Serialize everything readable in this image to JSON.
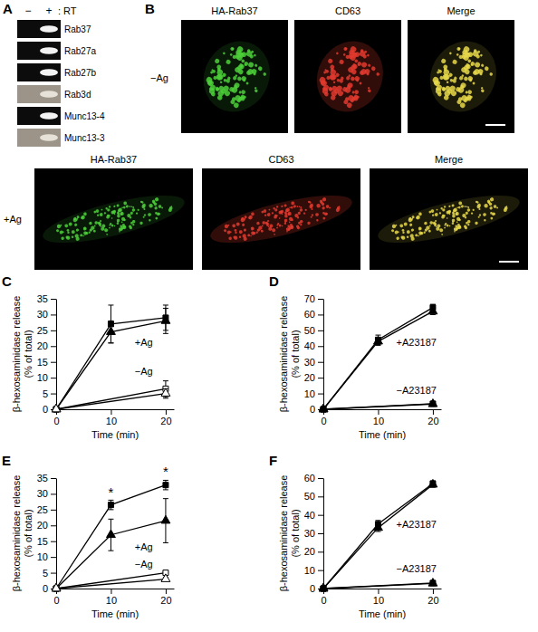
{
  "panel_a": {
    "label": "A",
    "lane_labels": [
      "−",
      "+"
    ],
    "lane_title": ": RT",
    "genes": [
      "Rab37",
      "Rab27a",
      "Rab27b",
      "Rab3d",
      "Munc13-4",
      "Munc13-3"
    ]
  },
  "panel_b": {
    "label": "B",
    "columns": [
      "HA-Rab37",
      "CD63",
      "Merge"
    ],
    "rows": [
      "−Ag",
      "+Ag"
    ]
  },
  "chart_data": [
    {
      "type": "line",
      "panel": "C",
      "x_label": "Time (min)",
      "y_label": [
        "β-hexosaminidase release",
        "(% of total)"
      ],
      "xlim": [
        0,
        21.5
      ],
      "xticks": [
        0,
        10,
        20
      ],
      "ylim": [
        0,
        35
      ],
      "yticks": [
        0,
        5,
        10,
        15,
        20,
        25,
        30,
        35
      ],
      "series": [
        {
          "x": [
            0,
            10,
            20
          ],
          "values": [
            0,
            27,
            29
          ],
          "errors": [
            null,
            6,
            4
          ],
          "marker": "square",
          "color": "#000000"
        },
        {
          "x": [
            0,
            10,
            20
          ],
          "values": [
            0,
            24.5,
            28
          ],
          "errors": [
            null,
            3.5,
            4
          ],
          "marker": "triangle",
          "color": "#000000"
        },
        {
          "x": [
            0,
            20
          ],
          "values": [
            0,
            6.5
          ],
          "errors": [
            null,
            2.5
          ],
          "marker": "open-square",
          "color": "#000000"
        },
        {
          "x": [
            0,
            20
          ],
          "values": [
            0,
            5
          ],
          "errors": [
            null,
            1.5
          ],
          "marker": "open-triangle",
          "color": "#000000"
        }
      ],
      "annotations": [
        {
          "text": "+Ag",
          "x": 16,
          "y": 20
        },
        {
          "text": "−Ag",
          "x": 16,
          "y": 11
        }
      ]
    },
    {
      "type": "line",
      "panel": "D",
      "x_label": "Time (min)",
      "y_label": [
        "β-hexosaminidase release",
        "(% of total)"
      ],
      "xlim": [
        0,
        21.5
      ],
      "xticks": [
        0,
        10,
        20
      ],
      "ylim": [
        0,
        70
      ],
      "yticks": [
        0,
        10,
        20,
        30,
        40,
        50,
        60,
        70
      ],
      "series": [
        {
          "x": [
            0,
            10,
            20
          ],
          "values": [
            0,
            44,
            64.5
          ],
          "errors": [
            null,
            3,
            2
          ],
          "marker": "square",
          "color": "#000000"
        },
        {
          "x": [
            0,
            10,
            20
          ],
          "values": [
            0,
            43,
            62
          ],
          "errors": [
            null,
            2.5,
            2
          ],
          "marker": "triangle",
          "color": "#000000"
        },
        {
          "x": [
            0,
            20
          ],
          "values": [
            0,
            3.5
          ],
          "errors": [
            null,
            0.5
          ],
          "marker": "square",
          "color": "#000000"
        },
        {
          "x": [
            0,
            20
          ],
          "values": [
            0,
            3.3
          ],
          "errors": [
            null,
            0.5
          ],
          "marker": "triangle",
          "color": "#000000"
        }
      ],
      "annotations": [
        {
          "text": "+A23187",
          "x": 17,
          "y": 40
        },
        {
          "text": "−A23187",
          "x": 17,
          "y": 10
        }
      ]
    },
    {
      "type": "line",
      "panel": "E",
      "x_label": "Time (min)",
      "y_label": [
        "β-hexosaminidase release",
        "(% of total)"
      ],
      "xlim": [
        0,
        21.5
      ],
      "xticks": [
        0,
        10,
        20
      ],
      "ylim": [
        0,
        35
      ],
      "yticks": [
        0,
        5,
        10,
        15,
        20,
        25,
        30,
        35
      ],
      "series": [
        {
          "x": [
            0,
            10,
            20
          ],
          "values": [
            0,
            26.5,
            32.8
          ],
          "errors": [
            null,
            1.5,
            1.5
          ],
          "marker": "square",
          "color": "#000000"
        },
        {
          "x": [
            0,
            10,
            20
          ],
          "values": [
            0,
            17,
            21.5
          ],
          "errors": [
            null,
            5,
            7
          ],
          "marker": "triangle",
          "color": "#000000"
        },
        {
          "x": [
            0,
            20
          ],
          "values": [
            0,
            5
          ],
          "errors": [
            null,
            0.5
          ],
          "marker": "open-square",
          "color": "#000000"
        },
        {
          "x": [
            0,
            20
          ],
          "values": [
            0,
            3
          ],
          "errors": [
            null,
            0.5
          ],
          "marker": "open-triangle",
          "color": "#000000"
        }
      ],
      "annotations": [
        {
          "text": "*",
          "x": 10,
          "y": 29
        },
        {
          "text": "*",
          "x": 20,
          "y": 35.5
        },
        {
          "text": "+Ag",
          "x": 16,
          "y": 12
        },
        {
          "text": "−Ag",
          "x": 16,
          "y": 6.5
        }
      ]
    },
    {
      "type": "line",
      "panel": "F",
      "x_label": "Time (min)",
      "y_label": [
        "β-hexosaminidase release",
        "(% of total)"
      ],
      "xlim": [
        0,
        21.5
      ],
      "xticks": [
        0,
        10,
        20
      ],
      "ylim": [
        0,
        60
      ],
      "yticks": [
        0,
        10,
        20,
        30,
        40,
        50,
        60
      ],
      "series": [
        {
          "x": [
            0,
            10,
            20
          ],
          "values": [
            0,
            35,
            57
          ],
          "errors": [
            null,
            2,
            1.5
          ],
          "marker": "square",
          "color": "#000000"
        },
        {
          "x": [
            0,
            10,
            20
          ],
          "values": [
            0,
            33,
            56.5
          ],
          "errors": [
            null,
            2,
            1.5
          ],
          "marker": "triangle",
          "color": "#000000"
        },
        {
          "x": [
            0,
            20
          ],
          "values": [
            0,
            3
          ],
          "errors": [
            null,
            0.5
          ],
          "marker": "square",
          "color": "#000000"
        },
        {
          "x": [
            0,
            20
          ],
          "values": [
            0,
            2.8
          ],
          "errors": [
            null,
            0.5
          ],
          "marker": "triangle",
          "color": "#000000"
        }
      ],
      "annotations": [
        {
          "text": "+A23187",
          "x": 17,
          "y": 33
        },
        {
          "text": "−A23187",
          "x": 17,
          "y": 9
        }
      ]
    }
  ]
}
